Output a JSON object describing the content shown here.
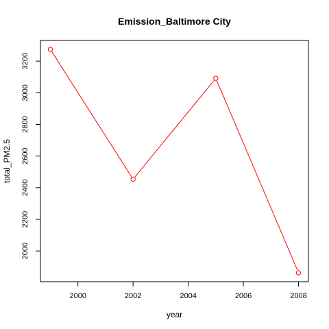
{
  "chart_data": {
    "type": "line",
    "title": "Emission_Baltimore City",
    "xlabel": "year",
    "ylabel": "total_PM2.5",
    "x": [
      1999,
      2002,
      2005,
      2008
    ],
    "series": [
      {
        "values": [
          3274.2,
          2453.9,
          3091.4,
          1862.3
        ],
        "color": "#ff0000"
      }
    ],
    "xlim": [
      1999,
      2008
    ],
    "ylim": [
      1862.3,
      3274.2
    ],
    "xticks": [
      2000,
      2002,
      2004,
      2006,
      2008
    ],
    "yticks": [
      2000,
      2200,
      2400,
      2600,
      2800,
      3000,
      3200
    ],
    "grid": false,
    "legend": "none",
    "line_color": "#ff0000",
    "marker": "open-circle"
  }
}
